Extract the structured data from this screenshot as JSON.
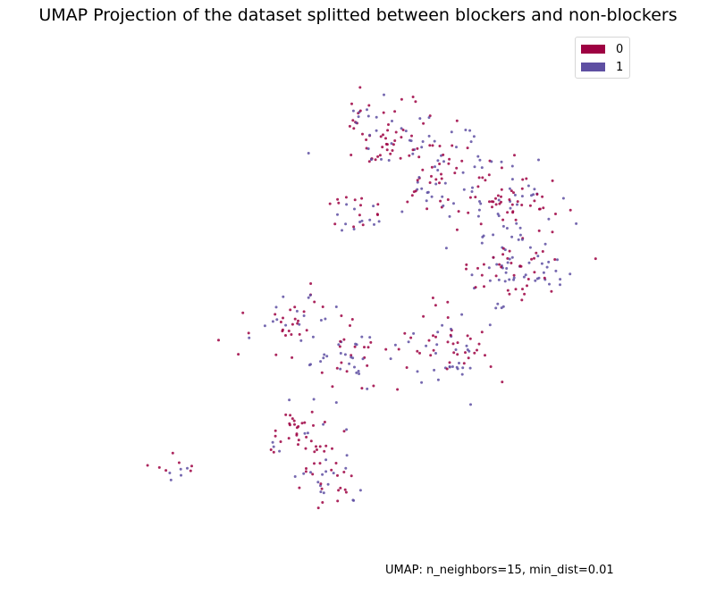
{
  "chart_data": {
    "type": "scatter",
    "title": "UMAP Projection of the dataset splitted between blockers and non-blockers",
    "annotation": "UMAP: n_neighbors=15, min_dist=0.01",
    "grid": false,
    "axes_visible": false,
    "legend_placement": "top-right",
    "series": [
      {
        "name": "0",
        "color": "#9e0142"
      },
      {
        "name": "1",
        "color": "#5e4fa2"
      }
    ],
    "clusters": [
      {
        "cx": 0.16,
        "cy": 0.84,
        "spread": 0.025,
        "count": 12,
        "mix": 0.5
      },
      {
        "cx": 0.44,
        "cy": 0.86,
        "spread": 0.035,
        "count": 40,
        "mix": 0.6
      },
      {
        "cx": 0.4,
        "cy": 0.75,
        "spread": 0.03,
        "count": 35,
        "mix": 0.55
      },
      {
        "cx": 0.48,
        "cy": 0.6,
        "spread": 0.04,
        "count": 45,
        "mix": 0.45
      },
      {
        "cx": 0.38,
        "cy": 0.52,
        "spread": 0.04,
        "count": 45,
        "mix": 0.55
      },
      {
        "cx": 0.66,
        "cy": 0.58,
        "spread": 0.05,
        "count": 70,
        "mix": 0.5
      },
      {
        "cx": 0.78,
        "cy": 0.4,
        "spread": 0.05,
        "count": 90,
        "mix": 0.45
      },
      {
        "cx": 0.65,
        "cy": 0.2,
        "spread": 0.06,
        "count": 95,
        "mix": 0.55
      },
      {
        "cx": 0.78,
        "cy": 0.26,
        "spread": 0.05,
        "count": 70,
        "mix": 0.55
      },
      {
        "cx": 0.5,
        "cy": 0.29,
        "spread": 0.03,
        "count": 25,
        "mix": 0.55
      },
      {
        "cx": 0.55,
        "cy": 0.13,
        "spread": 0.04,
        "count": 50,
        "mix": 0.6
      },
      {
        "cx": 0.51,
        "cy": 0.07,
        "spread": 0.02,
        "count": 12,
        "mix": 0.5
      },
      {
        "cx": 0.35,
        "cy": 0.79,
        "spread": 0.01,
        "count": 6,
        "mix": 0.5
      }
    ]
  }
}
